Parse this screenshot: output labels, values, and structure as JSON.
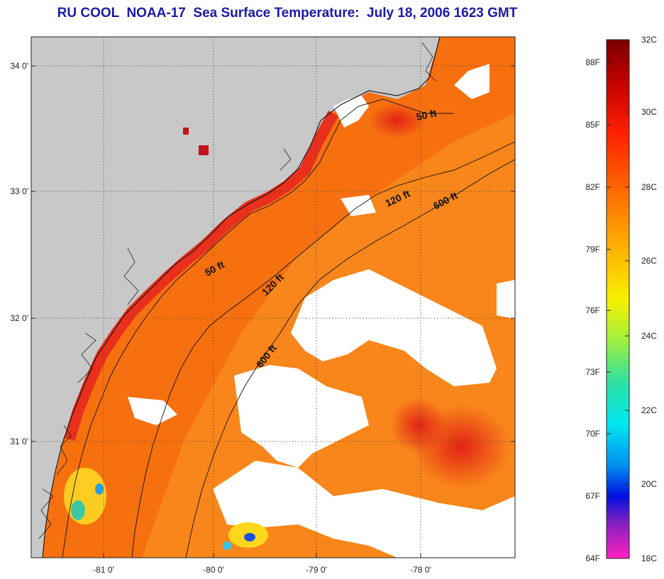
{
  "title": "RU COOL  NOAA-17  Sea Surface Temperature:  July 18, 2006 1623 GMT",
  "axes": {
    "longitude_ticks": [
      "-81 0'",
      "-80 0'",
      "-79 0'",
      "-78 0'"
    ],
    "latitude_ticks": [
      "34 0'",
      "33 0'",
      "32 0'",
      "31 0'"
    ]
  },
  "contours": {
    "labels": [
      "50 ft",
      "50 ft",
      "120 ft",
      "120 ft",
      "600 ft",
      "600 ft"
    ]
  },
  "colorbar": {
    "fahrenheit": [
      "88F",
      "85F",
      "82F",
      "79F",
      "76F",
      "73F",
      "70F",
      "67F",
      "64F"
    ],
    "celsius": [
      "32C",
      "30C",
      "28C",
      "26C",
      "24C",
      "22C",
      "20C",
      "18C"
    ]
  },
  "colors": {
    "land": "#c8c8c8",
    "sea_warm": "#f76a12",
    "sea_hot": "#e92a12",
    "cloud": "#ffffff",
    "title": "#1a1aa8"
  }
}
